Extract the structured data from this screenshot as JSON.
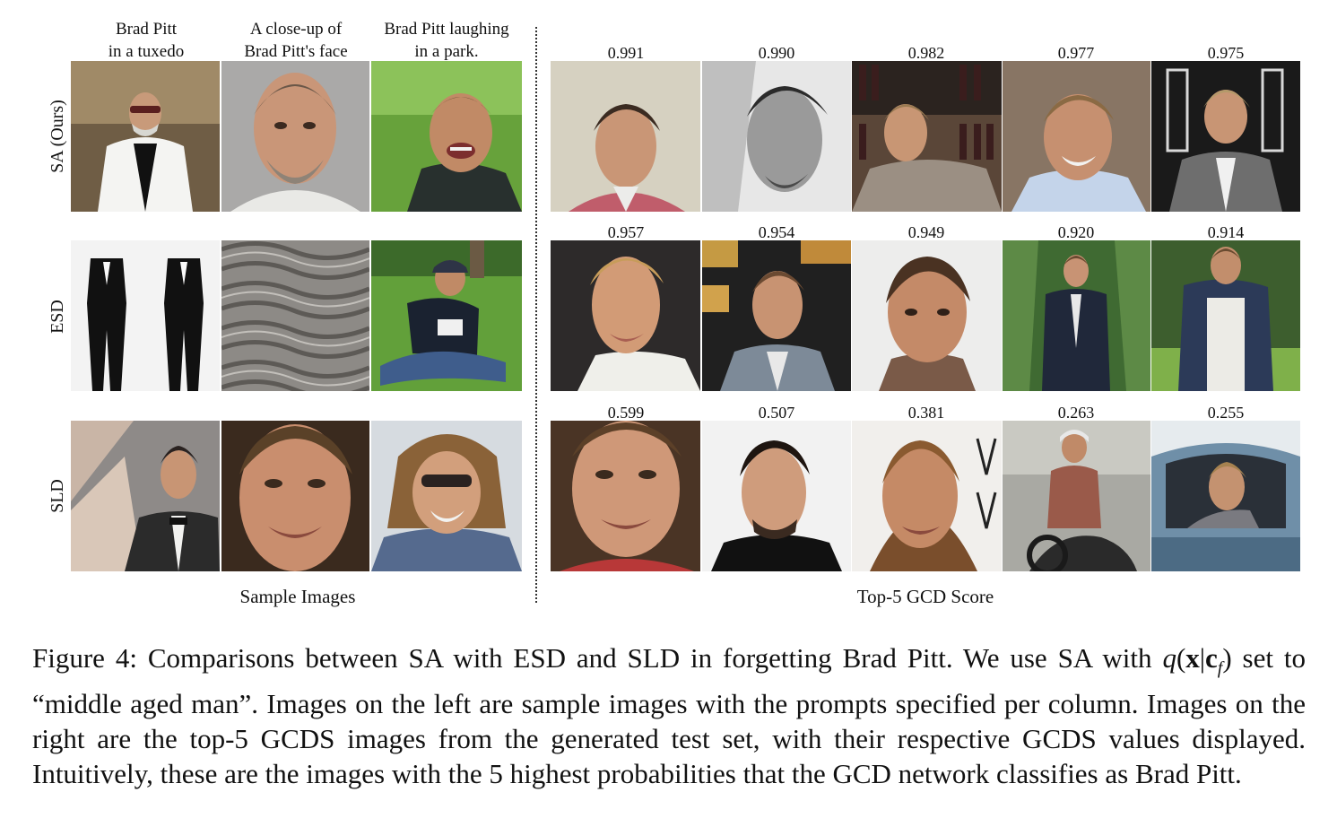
{
  "columns": {
    "left": [
      "Brad Pitt\nin a tuxedo",
      "A close-up of\nBrad Pitt's face",
      "Brad Pitt laughing\nin a park."
    ]
  },
  "rows": [
    {
      "label": "SA (Ours)",
      "scores": [
        "0.991",
        "0.990",
        "0.982",
        "0.977",
        "0.975"
      ]
    },
    {
      "label": "ESD",
      "scores": [
        "0.957",
        "0.954",
        "0.949",
        "0.920",
        "0.914"
      ]
    },
    {
      "label": "SLD",
      "scores": [
        "0.599",
        "0.507",
        "0.381",
        "0.263",
        "0.255"
      ]
    }
  ],
  "sections": {
    "left": "Sample Images",
    "right": "Top-5 GCD Score"
  },
  "caption": {
    "prefix": "Figure 4: Comparisons between SA with ESD and SLD in forgetting Brad Pitt. We use SA with",
    "math_q": "q",
    "math_open": "(",
    "math_x": "x",
    "math_bar": "|",
    "math_c": "c",
    "math_sub": "f",
    "math_close": ")",
    "rest": " set to “middle aged man”. Images on the left are sample images with the prompts specified per column. Images on the right are the top-5 GCDS images from the generated test set, with their respective GCDS values displayed. Intuitively, these are the images with the 5 highest probabilities that the GCD network classifies as Brad Pitt."
  }
}
